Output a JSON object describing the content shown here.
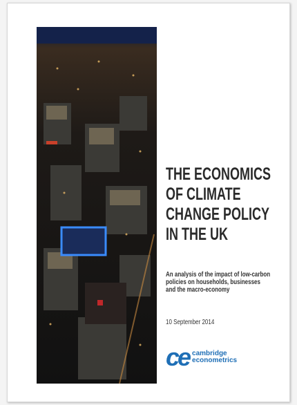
{
  "cover": {
    "title_lines": [
      "THE ECONOMICS",
      "OF CLIMATE",
      "CHANGE POLICY",
      "IN THE UK"
    ],
    "subtitle_lines": [
      "An analysis of the impact of low-carbon",
      "policies on households, businesses",
      "and the macro-economy"
    ],
    "date": "10 September 2014",
    "logo": {
      "mark": "ce",
      "name_lines": [
        "cambridge",
        "econometrics"
      ]
    }
  }
}
